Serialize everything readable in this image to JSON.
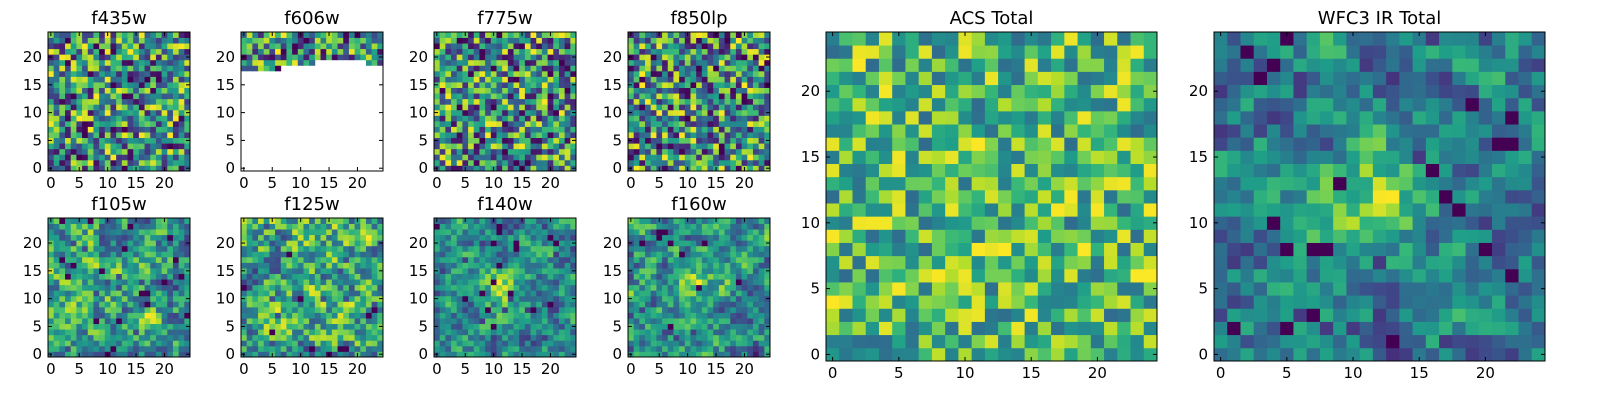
{
  "chart_data": [
    {
      "type": "heatmap",
      "title": "f435w",
      "xlim": [
        0,
        24
      ],
      "ylim": [
        0,
        24
      ],
      "xticks": [
        0,
        5,
        10,
        15,
        20
      ],
      "yticks": [
        0,
        5,
        10,
        15,
        20
      ],
      "colormap": "viridis",
      "grid_size": 25,
      "pattern": "noise",
      "seed": 11
    },
    {
      "type": "heatmap",
      "title": "f606w",
      "xlim": [
        0,
        24
      ],
      "ylim": [
        0,
        24
      ],
      "xticks": [
        0,
        5,
        10,
        15,
        20
      ],
      "yticks": [
        0,
        5,
        10,
        15,
        20
      ],
      "colormap": "viridis",
      "grid_size": 25,
      "pattern": "masked",
      "seed": 23
    },
    {
      "type": "heatmap",
      "title": "f775w",
      "xlim": [
        0,
        24
      ],
      "ylim": [
        0,
        24
      ],
      "xticks": [
        0,
        5,
        10,
        15,
        20
      ],
      "yticks": [
        0,
        5,
        10,
        15,
        20
      ],
      "colormap": "viridis",
      "grid_size": 25,
      "pattern": "noise",
      "seed": 37
    },
    {
      "type": "heatmap",
      "title": "f850lp",
      "xlim": [
        0,
        24
      ],
      "ylim": [
        0,
        24
      ],
      "xticks": [
        0,
        5,
        10,
        15,
        20
      ],
      "yticks": [
        0,
        5,
        10,
        15,
        20
      ],
      "colormap": "viridis",
      "grid_size": 25,
      "pattern": "noise",
      "seed": 41
    },
    {
      "type": "heatmap",
      "title": "f105w",
      "xlim": [
        0,
        24
      ],
      "ylim": [
        0,
        24
      ],
      "xticks": [
        0,
        5,
        10,
        15,
        20
      ],
      "yticks": [
        0,
        5,
        10,
        15,
        20
      ],
      "colormap": "viridis",
      "grid_size": 25,
      "pattern": "smooth",
      "seed": 53
    },
    {
      "type": "heatmap",
      "title": "f125w",
      "xlim": [
        0,
        24
      ],
      "ylim": [
        0,
        24
      ],
      "xticks": [
        0,
        5,
        10,
        15,
        20
      ],
      "yticks": [
        0,
        5,
        10,
        15,
        20
      ],
      "colormap": "viridis",
      "grid_size": 25,
      "pattern": "smooth",
      "seed": 67
    },
    {
      "type": "heatmap",
      "title": "f140w",
      "xlim": [
        0,
        24
      ],
      "ylim": [
        0,
        24
      ],
      "xticks": [
        0,
        5,
        10,
        15,
        20
      ],
      "yticks": [
        0,
        5,
        10,
        15,
        20
      ],
      "colormap": "viridis",
      "grid_size": 25,
      "pattern": "source",
      "seed": 71
    },
    {
      "type": "heatmap",
      "title": "f160w",
      "xlim": [
        0,
        24
      ],
      "ylim": [
        0,
        24
      ],
      "xticks": [
        0,
        5,
        10,
        15,
        20
      ],
      "yticks": [
        0,
        5,
        10,
        15,
        20
      ],
      "colormap": "viridis",
      "grid_size": 25,
      "pattern": "source",
      "seed": 83
    },
    {
      "type": "heatmap",
      "title": "ACS Total",
      "xlim": [
        0,
        24
      ],
      "ylim": [
        0,
        24
      ],
      "xticks": [
        0,
        5,
        10,
        15,
        20
      ],
      "yticks": [
        0,
        5,
        10,
        15,
        20
      ],
      "colormap": "viridis",
      "grid_size": 25,
      "pattern": "noise-bright",
      "seed": 97
    },
    {
      "type": "heatmap",
      "title": "WFC3 IR Total",
      "xlim": [
        0,
        24
      ],
      "ylim": [
        0,
        24
      ],
      "xticks": [
        0,
        5,
        10,
        15,
        20
      ],
      "yticks": [
        0,
        5,
        10,
        15,
        20
      ],
      "colormap": "viridis",
      "grid_size": 25,
      "pattern": "source-strong",
      "seed": 101
    }
  ]
}
